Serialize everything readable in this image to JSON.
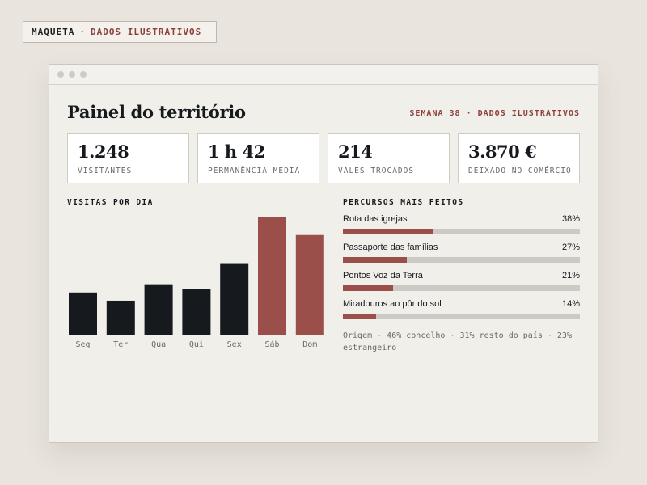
{
  "tag": {
    "left": "MAQUETA",
    "separator": "·",
    "right": "DADOS ILUSTRATIVOS"
  },
  "dashboard": {
    "title": "Painel do território",
    "week_label": "SEMANA 38 · DADOS ILUSTRATIVOS",
    "kpis": [
      {
        "value": "1.248",
        "label": "VISITANTES"
      },
      {
        "value": "1 h 42",
        "label": "PERMANÊNCIA MÉDIA"
      },
      {
        "value": "214",
        "label": "VALES TROCADOS"
      },
      {
        "value": "3.870 €",
        "label": "DEIXADO NO COMÉRCIO"
      }
    ],
    "visits_title": "VISITAS POR DIA",
    "routes_title": "PERCURSOS MAIS FEITOS",
    "routes": [
      {
        "name": "Rota das igrejas",
        "percent_label": "38%",
        "value": 38
      },
      {
        "name": "Passaporte das famílias",
        "percent_label": "27%",
        "value": 27
      },
      {
        "name": "Pontos Voz da Terra",
        "percent_label": "21%",
        "value": 21
      },
      {
        "name": "Miradouros ao pôr do sol",
        "percent_label": "14%",
        "value": 14
      }
    ],
    "origin_text": "Origem · 46% concelho · 31% resto do país · 23% estrangeiro"
  },
  "colors": {
    "accent": "#9b4f4b",
    "dark_bar": "#16191e",
    "track": "#cdcac5"
  },
  "chart_data": {
    "type": "bar",
    "categories": [
      "Seg",
      "Ter",
      "Qua",
      "Qui",
      "Sex",
      "Sáb",
      "Dom"
    ],
    "values": [
      36,
      29,
      43,
      39,
      61,
      100,
      85
    ],
    "highlight": [
      "Sáb",
      "Dom"
    ],
    "ylim": [
      0,
      100
    ],
    "title": "VISITAS POR DIA",
    "xlabel": "",
    "ylabel": "",
    "grid": false
  }
}
